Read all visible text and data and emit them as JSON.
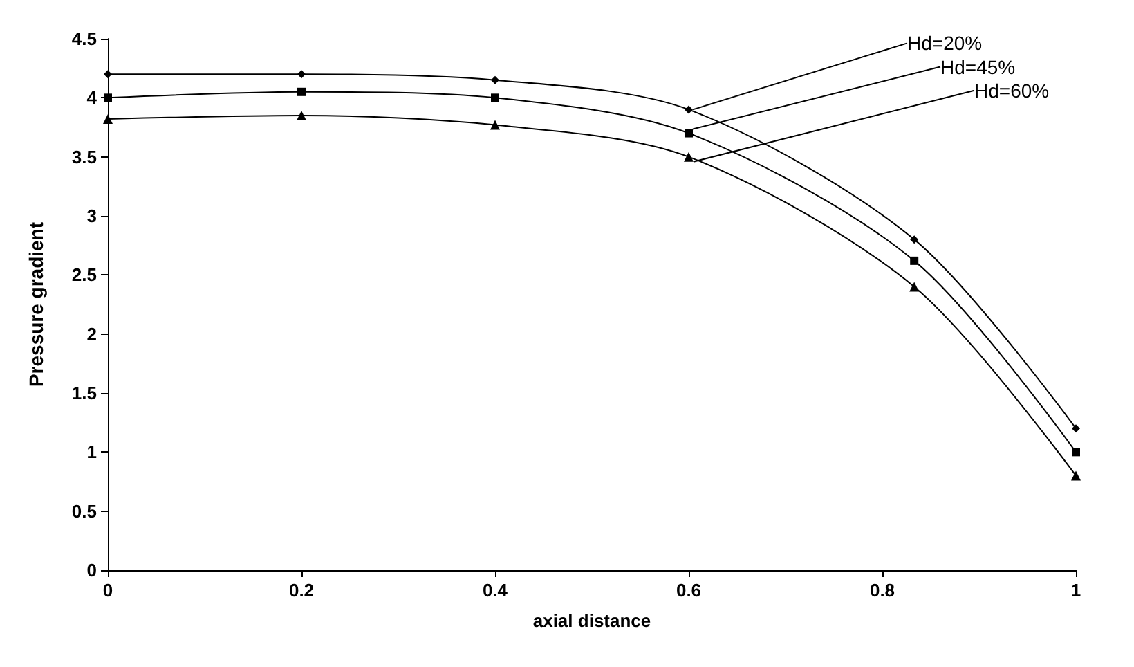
{
  "chart_data": {
    "type": "line",
    "xlabel": "axial distance",
    "ylabel": "Pressure gradient",
    "x": [
      0,
      0.2,
      0.4,
      0.6,
      0.833,
      1
    ],
    "series": [
      {
        "name": "Hd=20%",
        "color": "#000000",
        "marker": "diamond",
        "values": [
          4.2,
          4.2,
          4.15,
          3.9,
          2.8,
          1.2
        ]
      },
      {
        "name": "Hd=45%",
        "color": "#000000",
        "marker": "square",
        "values": [
          4.0,
          4.05,
          4.0,
          3.7,
          2.62,
          1.0
        ]
      },
      {
        "name": "Hd=60%",
        "color": "#000000",
        "marker": "triangle",
        "values": [
          3.82,
          3.85,
          3.77,
          3.5,
          2.4,
          0.8
        ]
      }
    ],
    "xlim": [
      0,
      1
    ],
    "xticks": [
      0,
      0.2,
      0.4,
      0.6,
      0.8,
      1
    ],
    "ylim": [
      0,
      4.5
    ],
    "yticks": [
      0,
      0.5,
      1,
      1.5,
      2,
      2.5,
      3,
      3.5,
      4,
      4.5
    ],
    "grid": false,
    "legend": false,
    "line_style": "solid"
  }
}
